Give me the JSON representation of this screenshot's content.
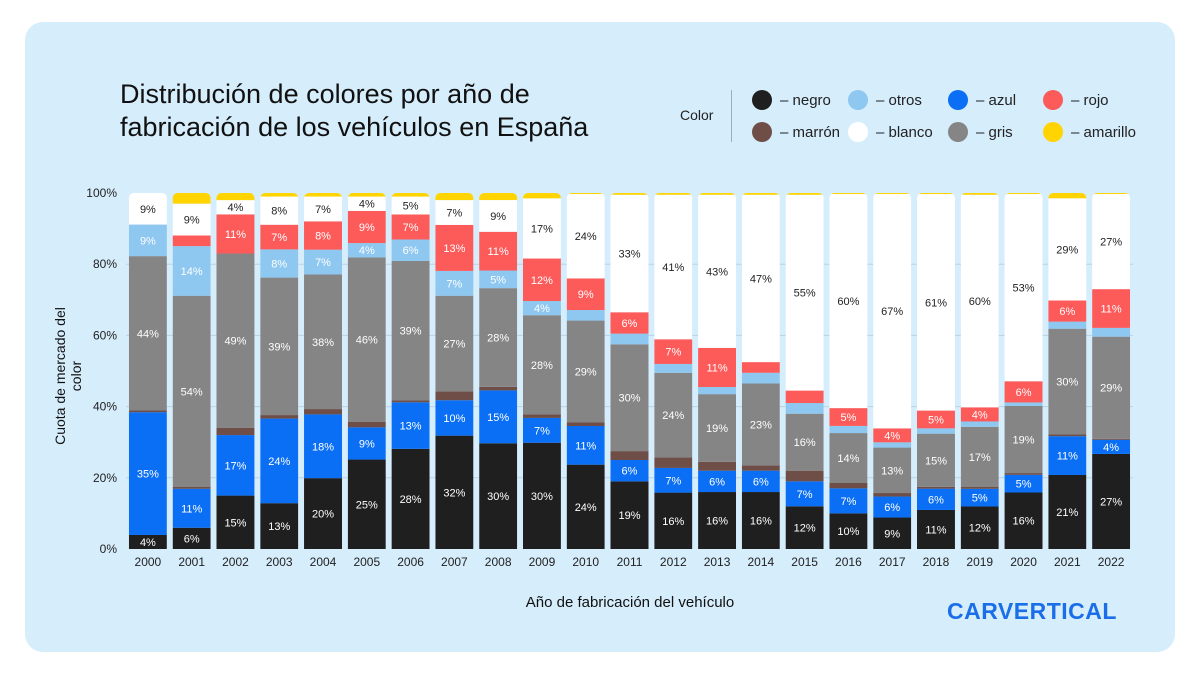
{
  "chart_data": {
    "type": "bar",
    "stacked": true,
    "title": "Distribución de colores por año de fabricación de los vehículos en España",
    "xlabel": "Año de fabricación del vehículo",
    "ylabel": "Cuota de mercado del color",
    "ylim": [
      0,
      100
    ],
    "yticks": [
      "0%",
      "20%",
      "40%",
      "60%",
      "80%",
      "100%"
    ],
    "grid": true,
    "legend_title": "Color",
    "legend_position": "top-right",
    "categories": [
      "2000",
      "2001",
      "2002",
      "2003",
      "2004",
      "2005",
      "2006",
      "2007",
      "2008",
      "2009",
      "2010",
      "2011",
      "2012",
      "2013",
      "2014",
      "2015",
      "2016",
      "2017",
      "2018",
      "2019",
      "2020",
      "2021",
      "2022"
    ],
    "series": [
      {
        "name": "– negro",
        "color": "#1f1f1f",
        "values": [
          4,
          6,
          15,
          13,
          20,
          25,
          28,
          32,
          30,
          30,
          24,
          19,
          16,
          16,
          16,
          12,
          10,
          9,
          11,
          12,
          16,
          21,
          27
        ]
      },
      {
        "name": "– azul",
        "color": "#0a6ff5",
        "values": [
          35,
          11,
          17,
          24,
          18,
          9,
          13,
          10,
          15,
          7,
          11,
          6,
          7,
          6,
          6,
          7,
          7,
          6,
          6,
          5,
          5,
          11,
          4
        ]
      },
      {
        "name": "– marrón",
        "color": "#6e4e47",
        "values": [
          0.5,
          0.5,
          2,
          1,
          1.5,
          1.5,
          0.5,
          2.5,
          1,
          1,
          1,
          2.5,
          3,
          2.5,
          1.5,
          3,
          1.5,
          1,
          0.5,
          0.5,
          0.5,
          0.5,
          0.3
        ]
      },
      {
        "name": "– gris",
        "color": "#858585",
        "values": [
          44,
          54,
          49,
          39,
          38,
          46,
          39,
          27,
          28,
          28,
          29,
          30,
          24,
          19,
          23,
          16,
          14,
          13,
          15,
          17,
          19,
          30,
          29
        ]
      },
      {
        "name": "– otros",
        "color": "#8ec7f0",
        "values": [
          9,
          14,
          0,
          8,
          7,
          4,
          6,
          7,
          5,
          4,
          3,
          3,
          2.5,
          2,
          3,
          3,
          2,
          1.5,
          1.5,
          1.5,
          1,
          2,
          2.5
        ]
      },
      {
        "name": "– rojo",
        "color": "#fd5a5a",
        "values": [
          0,
          3,
          11,
          7,
          8,
          9,
          7,
          13,
          11,
          12,
          9,
          6,
          7,
          11,
          3,
          3.5,
          5,
          4,
          5,
          4,
          6,
          6,
          11
        ]
      },
      {
        "name": "– blanco",
        "color": "#ffffff",
        "values": [
          9,
          9,
          4,
          8,
          7,
          4,
          5,
          7,
          9,
          17,
          24,
          33,
          41,
          43,
          47,
          55,
          60,
          67,
          61,
          60,
          53,
          29,
          27
        ]
      },
      {
        "name": "– amarillo",
        "color": "#ffd400",
        "values": [
          0,
          3,
          2,
          1,
          1,
          1,
          1,
          2,
          2,
          1.5,
          0.3,
          0.5,
          0.5,
          0.5,
          0.5,
          0.5,
          0.3,
          0.3,
          0.3,
          0.5,
          0.3,
          1.5,
          0.3
        ]
      }
    ]
  },
  "brand": "CARVERTICAL"
}
